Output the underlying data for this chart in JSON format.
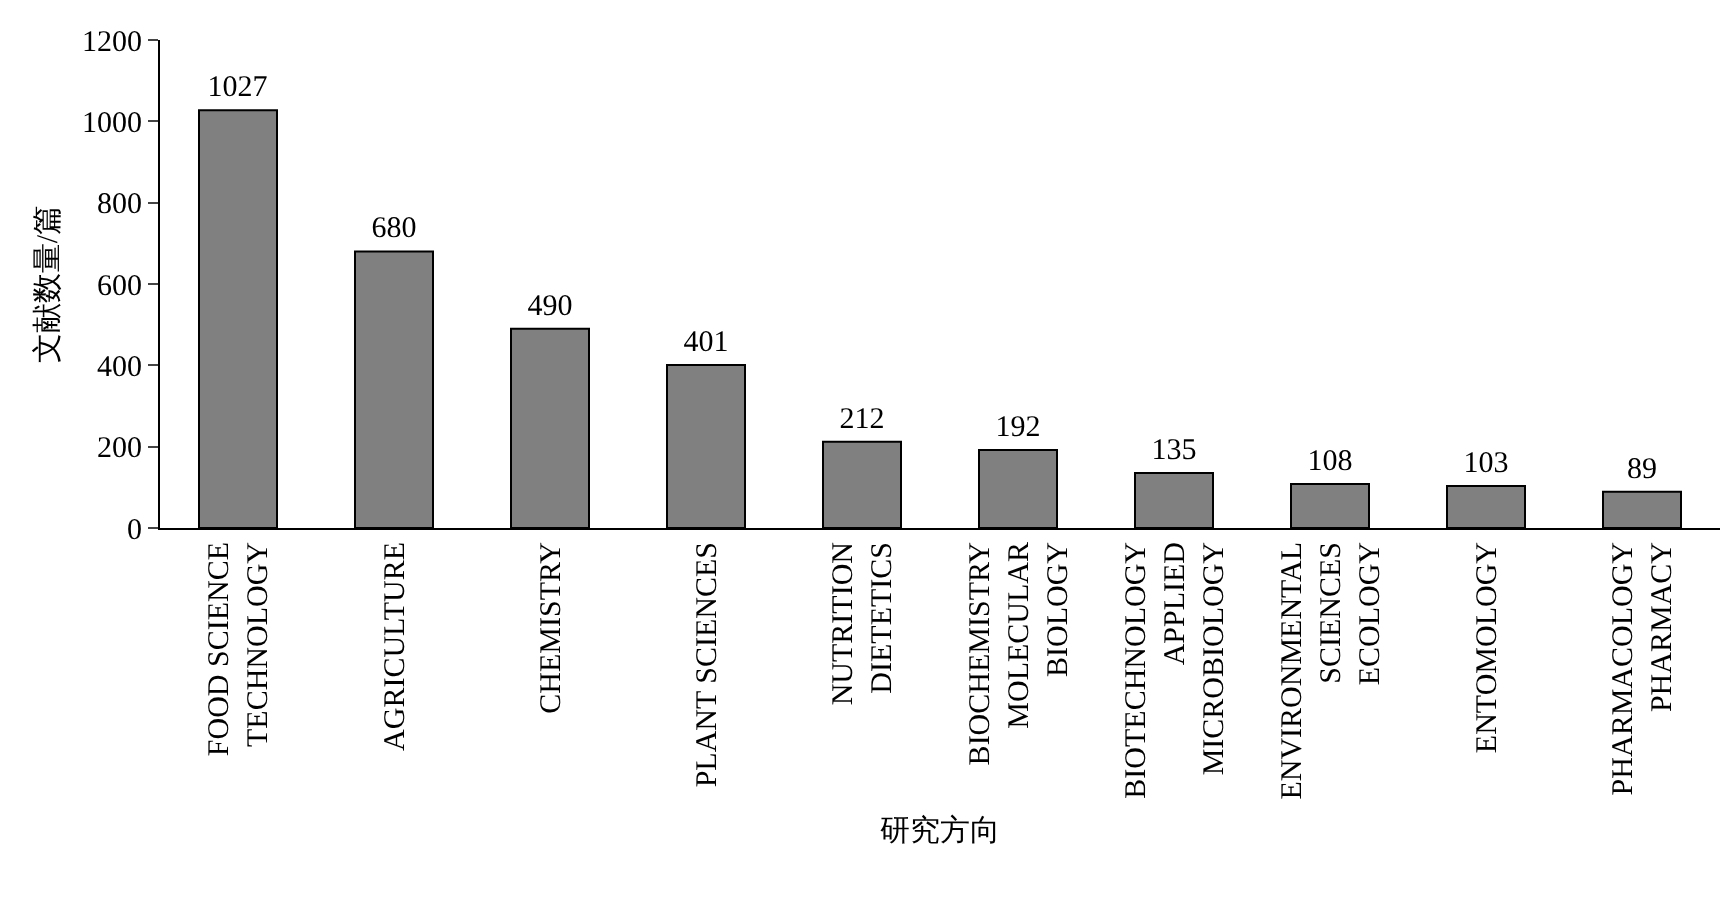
{
  "chart_data": {
    "type": "bar",
    "xlabel": "研究方向",
    "ylabel": "文献数量/篇",
    "categories": [
      "FOOD SCIENCE\nTECHNOLOGY",
      "AGRICULTURE",
      "CHEMISTRY",
      "PLANT SCIENCES",
      "NUTRITION\nDIETETICS",
      "BIOCHEMISTRY\nMOLECULAR\nBIOLOGY",
      "BIOTECHNOLOGY\nAPPLIED\nMICROBIOLOGY",
      "ENVIRONMENTAL\nSCIENCES\nECOLOGY",
      "ENTOMOLOGY",
      "PHARMACOLOGY\nPHARMACY"
    ],
    "values": [
      1027,
      680,
      490,
      401,
      212,
      192,
      135,
      108,
      103,
      89
    ],
    "color": "#808080",
    "ylim": [
      0,
      1200
    ],
    "yticks": [
      0,
      200,
      400,
      600,
      800,
      1000,
      1200
    ],
    "data_labels": true,
    "grid": false,
    "legend": false
  }
}
